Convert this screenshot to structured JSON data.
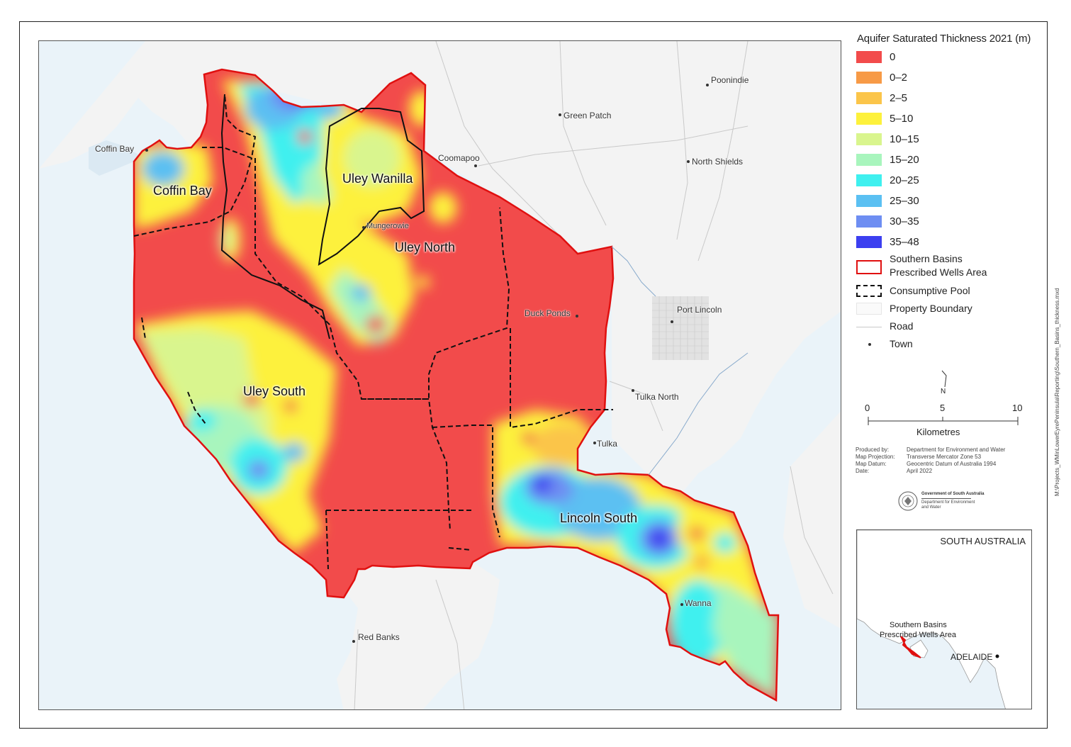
{
  "legend": {
    "title": "Aquifer Saturated Thickness 2021 (m)",
    "classes": [
      {
        "label": "0",
        "color": "#f24b4b"
      },
      {
        "label": "0–2",
        "color": "#f79a46"
      },
      {
        "label": "2–5",
        "color": "#fbc54a"
      },
      {
        "label": "5–10",
        "color": "#fdf13c"
      },
      {
        "label": "10–15",
        "color": "#d9f58e"
      },
      {
        "label": "15–20",
        "color": "#a8f5bd"
      },
      {
        "label": "20–25",
        "color": "#3ff0ef"
      },
      {
        "label": "25–30",
        "color": "#5bc0f2"
      },
      {
        "label": "30–35",
        "color": "#6e8ef2"
      },
      {
        "label": "35–48",
        "color": "#3c3ff0"
      }
    ],
    "boundary_line1": "Southern Basins",
    "boundary_line2": "Prescribed Wells Area",
    "pool": "Consumptive Pool",
    "property": "Property Boundary",
    "road": "Road",
    "town": "Town"
  },
  "towns": {
    "poonindie": "Poonindie",
    "green_patch": "Green Patch",
    "coffin_bay": "Coffin Bay",
    "coomapoo": "Coomapoo",
    "north_shields": "North Shields",
    "mungerowie": "Mungerowie",
    "duck_ponds": "Duck Ponds",
    "port_lincoln": "Port Lincoln",
    "tulka_north": "Tulka North",
    "tulka": "Tulka",
    "wanna": "Wanna",
    "red_banks": "Red Banks"
  },
  "zones": {
    "coffin_bay": "Coffin Bay",
    "uley_wanilla": "Uley Wanilla",
    "uley_north": "Uley North",
    "uley_south": "Uley South",
    "lincoln_south": "Lincoln South"
  },
  "scale": {
    "north": "N",
    "t0": "0",
    "t5": "5",
    "t10": "10",
    "units": "Kilometres"
  },
  "credits": {
    "produced_k": "Produced by:",
    "produced_v": "Department for Environment and Water",
    "projection_k": "Map Projection:",
    "projection_v": "Transverse Mercator Zone 53",
    "datum_k": "Map Datum:",
    "datum_v": "Geocentric Datum of Australia 1994",
    "date_k": "Date:",
    "date_v": "April 2022"
  },
  "logo": {
    "line1": "Government of South Australia",
    "line2": "Department for Environment",
    "line3": "and Water"
  },
  "inset": {
    "state": "SOUTH AUSTRALIA",
    "area_line1": "Southern Basins",
    "area_line2": "Prescribed Wells Area",
    "city": "ADELAIDE"
  },
  "file_path": "M:\\Projects_WMinLowerEyrePeninsula\\Reporting\\Southern_Basins_thickness.mxd"
}
